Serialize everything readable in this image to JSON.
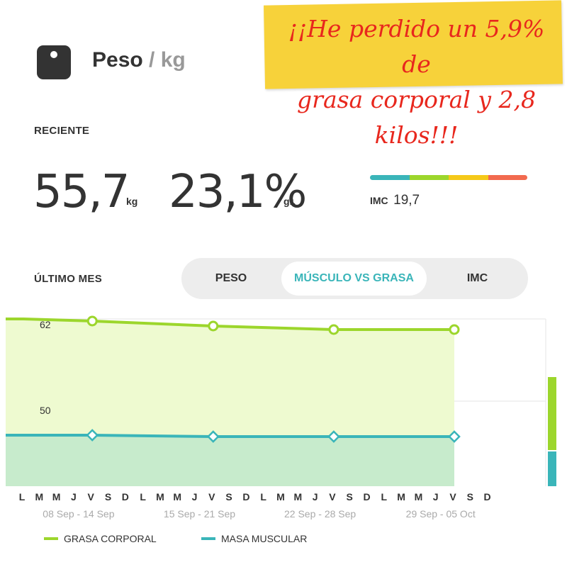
{
  "banner": {
    "line1": "¡¡He perdido un 5,9% de",
    "line2": "grasa corporal y 2,8 kilos!!!"
  },
  "header": {
    "icon": "scale-icon",
    "title": "Peso",
    "separator": " / ",
    "unit": "kg"
  },
  "recent": {
    "label": "RECIENTE",
    "weight_value": "55,7",
    "weight_unit": "kg",
    "fat_value": "23,1%",
    "fat_unit": "gr.",
    "imc_label": "IMC",
    "imc_value": "19,7",
    "imc_scale_colors": [
      "#3ab5b9",
      "#9cd62c",
      "#f5c919",
      "#f26a4f"
    ]
  },
  "period": {
    "label": "ÚLTIMO MES",
    "tabs": [
      {
        "label": "PESO",
        "active": false
      },
      {
        "label": "MÚSCULO VS GRASA",
        "active": true
      },
      {
        "label": "IMC",
        "active": false
      }
    ]
  },
  "chart_data": {
    "type": "area",
    "ytick_labels": [
      "62",
      "50"
    ],
    "x_day_letters": [
      "L",
      "M",
      "M",
      "J",
      "V",
      "S",
      "D",
      "L",
      "M",
      "M",
      "J",
      "V",
      "S",
      "D",
      "L",
      "M",
      "M",
      "J",
      "V",
      "S",
      "D",
      "L",
      "M",
      "M",
      "J",
      "V",
      "S",
      "D"
    ],
    "x_week_labels": [
      "08 Sep - 14 Sep",
      "15 Sep - 21 Sep",
      "22 Sep - 28 Sep",
      "29 Sep - 05 Oct"
    ],
    "series": [
      {
        "name": "GRASA CORPORAL",
        "color": "#9cd62c",
        "day_index": [
          0,
          4,
          11,
          18,
          25
        ],
        "values": [
          61.6,
          61.3,
          60.6,
          60.1,
          60.1
        ]
      },
      {
        "name": "MASA MUSCULAR",
        "color": "#3ab5b9",
        "day_index": [
          0,
          4,
          11,
          18,
          25
        ],
        "values": [
          45.2,
          45.2,
          45.0,
          45.0,
          45.0
        ]
      }
    ],
    "legend": "bottom"
  }
}
